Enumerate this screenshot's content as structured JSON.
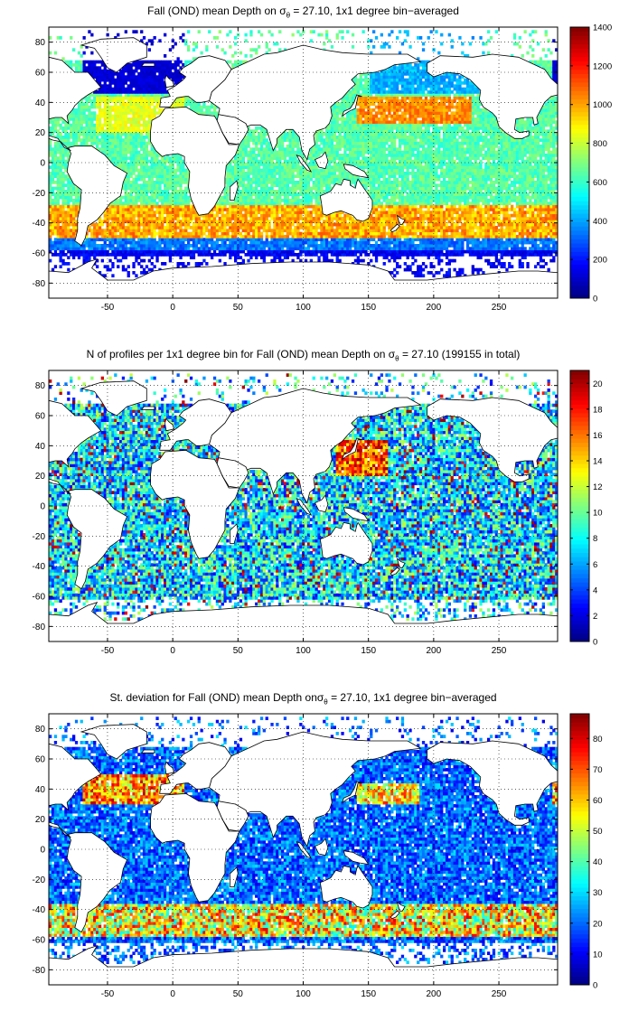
{
  "panels": [
    {
      "title_pre": "Fall (OND) mean Depth on ",
      "sigma": "σ",
      "sub": "θ",
      "title_post": " = 27.10, 1x1 degree bin−averaged",
      "colorbar": {
        "ticks": [
          "0",
          "200",
          "400",
          "600",
          "800",
          "1000",
          "1200",
          "1400"
        ]
      },
      "field": "mean_depth"
    },
    {
      "title_pre": "N of profiles per 1x1 degree bin for Fall (OND) mean Depth on ",
      "sigma": "σ",
      "sub": "θ",
      "title_post": " = 27.10 (199155 in total)",
      "colorbar": {
        "ticks": [
          "0",
          "2",
          "4",
          "6",
          "8",
          "10",
          "12",
          "14",
          "16",
          "18",
          "20"
        ]
      },
      "field": "profile_count"
    },
    {
      "title_pre": "St. deviation for Fall (OND) mean Depth on",
      "sigma": "σ",
      "sub": "θ",
      "title_post": " = 27.10, 1x1 degree bin−averaged",
      "colorbar": {
        "ticks": [
          "0",
          "10",
          "20",
          "30",
          "40",
          "50",
          "60",
          "70",
          "80"
        ]
      },
      "field": "std_depth"
    }
  ],
  "axes": {
    "x_ticks": [
      "-50",
      "0",
      "50",
      "100",
      "150",
      "200",
      "250"
    ],
    "y_ticks": [
      "80",
      "60",
      "40",
      "20",
      "0",
      "-20",
      "-40",
      "-60",
      "-80"
    ]
  },
  "chart_data": {
    "type": "heatmap",
    "projection": "lon-lat",
    "xlim": [
      -95,
      295
    ],
    "ylim": [
      -90,
      90
    ],
    "clim": [
      [
        0,
        1400
      ],
      [
        0,
        21
      ],
      [
        0,
        88
      ]
    ],
    "colormap": "jet",
    "grid": true
  }
}
